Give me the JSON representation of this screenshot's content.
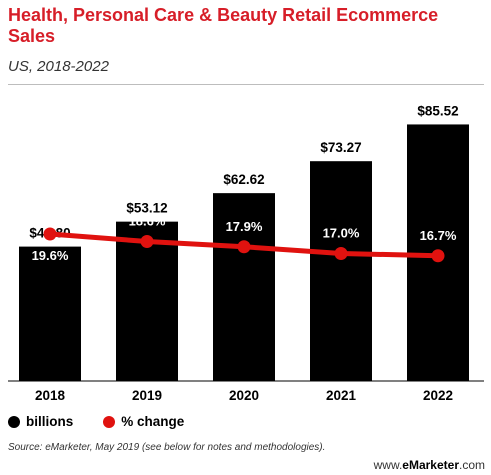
{
  "header": {
    "title": "Health, Personal Care & Beauty Retail Ecommerce Sales",
    "subtitle": "US, 2018-2022"
  },
  "legend": {
    "billions_label": "billions",
    "change_label": "% change",
    "billions_color": "#000000",
    "change_color": "#e0120f"
  },
  "footer": {
    "source": "Source: eMarketer, May 2019 (see below for notes and methodologies).",
    "brand_prefix": "www.",
    "brand_name": "eMarketer",
    "brand_suffix": ".com"
  },
  "chart_data": {
    "type": "bar",
    "categories": [
      "2018",
      "2019",
      "2020",
      "2021",
      "2022"
    ],
    "series": [
      {
        "name": "billions",
        "type": "bar",
        "values": [
          44.8,
          53.12,
          62.62,
          73.27,
          85.52
        ],
        "labels": [
          "$44.80",
          "$53.12",
          "$62.62",
          "$73.27",
          "$85.52"
        ],
        "color": "#000000"
      },
      {
        "name": "% change",
        "type": "line",
        "values": [
          19.6,
          18.6,
          17.9,
          17.0,
          16.7
        ],
        "labels": [
          "19.6%",
          "18.6%",
          "17.9%",
          "17.0%",
          "16.7%"
        ],
        "color": "#e0120f"
      }
    ],
    "ylim": [
      0,
      90
    ],
    "line_ylim": [
      0,
      36
    ],
    "grid": false
  }
}
